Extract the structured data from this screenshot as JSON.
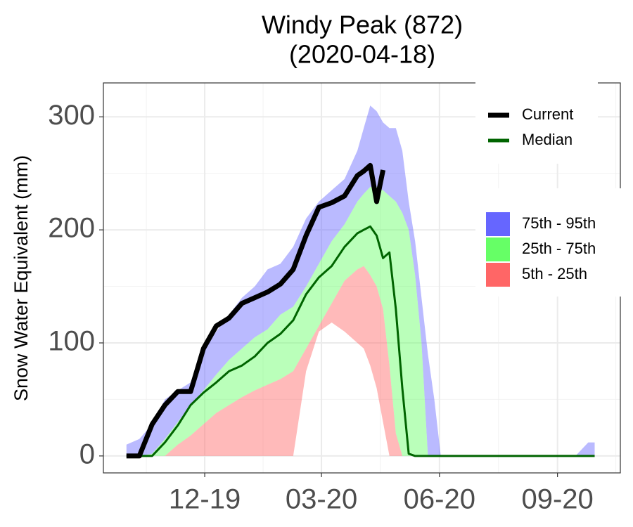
{
  "chart_data": {
    "type": "percentile_band",
    "title": "Windy Peak (872)",
    "subtitle": "(2020-04-18)",
    "y_label": "Snow Water Equivalent (mm)",
    "x": [
      "2019-10-01",
      "2019-10-11",
      "2019-10-21",
      "2019-10-31",
      "2019-11-10",
      "2019-11-20",
      "2019-11-30",
      "2019-12-10",
      "2019-12-20",
      "2019-12-30",
      "2020-01-09",
      "2020-01-19",
      "2020-01-29",
      "2020-02-08",
      "2020-02-18",
      "2020-02-28",
      "2020-03-09",
      "2020-03-19",
      "2020-03-29",
      "2020-04-03",
      "2020-04-08",
      "2020-04-13",
      "2020-04-18",
      "2020-04-23",
      "2020-04-28",
      "2020-05-03",
      "2020-05-08",
      "2020-05-13",
      "2020-05-18",
      "2020-05-23",
      "2020-05-28",
      "2020-06-02",
      "2020-06-07",
      "2020-06-17",
      "2020-06-27",
      "2020-07-07",
      "2020-07-17",
      "2020-07-27",
      "2020-08-06",
      "2020-08-16",
      "2020-08-26",
      "2020-09-05",
      "2020-09-15",
      "2020-09-25",
      "2020-09-30"
    ],
    "bands": [
      {
        "name": "75th - 95th",
        "color": "#6666ff",
        "low": [
          0,
          0,
          2,
          15,
          30,
          45,
          58,
          72,
          85,
          95,
          105,
          112,
          125,
          132,
          150,
          170,
          190,
          205,
          225,
          232,
          238,
          238,
          235,
          230,
          225,
          215,
          200,
          160,
          100,
          0,
          0,
          0,
          0,
          0,
          0,
          0,
          0,
          0,
          0,
          0,
          0,
          0,
          0,
          0,
          0
        ],
        "high": [
          10,
          15,
          28,
          50,
          58,
          65,
          95,
          110,
          125,
          140,
          150,
          165,
          170,
          185,
          210,
          225,
          235,
          245,
          270,
          290,
          310,
          305,
          295,
          290,
          290,
          270,
          225,
          190,
          140,
          90,
          50,
          0,
          0,
          0,
          0,
          0,
          0,
          0,
          0,
          0,
          0,
          0,
          0,
          12,
          12
        ]
      },
      {
        "name": "25th - 75th",
        "color": "#66ff66",
        "low": [
          0,
          0,
          0,
          0,
          10,
          18,
          28,
          38,
          45,
          52,
          58,
          63,
          68,
          75,
          95,
          115,
          135,
          155,
          165,
          168,
          160,
          150,
          130,
          80,
          20,
          0,
          0,
          0,
          0,
          0,
          0,
          0,
          0,
          0,
          0,
          0,
          0,
          0,
          0,
          0,
          0,
          0,
          0,
          0,
          0
        ],
        "high": [
          0,
          0,
          2,
          15,
          30,
          45,
          58,
          72,
          85,
          95,
          105,
          112,
          125,
          132,
          150,
          170,
          190,
          205,
          225,
          232,
          238,
          238,
          235,
          230,
          225,
          215,
          200,
          160,
          100,
          0,
          0,
          0,
          0,
          0,
          0,
          0,
          0,
          0,
          0,
          0,
          0,
          0,
          0,
          0,
          0
        ]
      },
      {
        "name": "5th - 25th",
        "color": "#ff6666",
        "low": [
          0,
          0,
          0,
          0,
          0,
          0,
          0,
          0,
          0,
          0,
          0,
          0,
          0,
          0,
          75,
          110,
          118,
          110,
          100,
          95,
          80,
          60,
          30,
          0,
          0,
          0,
          0,
          0,
          0,
          0,
          0,
          0,
          0,
          0,
          0,
          0,
          0,
          0,
          0,
          0,
          0,
          0,
          0,
          0,
          0
        ],
        "high": [
          0,
          0,
          0,
          0,
          10,
          18,
          28,
          38,
          45,
          52,
          58,
          63,
          68,
          75,
          95,
          115,
          135,
          155,
          165,
          168,
          160,
          150,
          130,
          80,
          20,
          0,
          0,
          0,
          0,
          0,
          0,
          0,
          0,
          0,
          0,
          0,
          0,
          0,
          0,
          0,
          0,
          0,
          0,
          0,
          0
        ]
      }
    ],
    "series": [
      {
        "name": "Current",
        "color": "#000000",
        "values": [
          0,
          0,
          28,
          45,
          57,
          57,
          95,
          115,
          122,
          135,
          140,
          145,
          152,
          165,
          195,
          220,
          224,
          230,
          248,
          252,
          257,
          225,
          253,
          null,
          null,
          null,
          null,
          null,
          null,
          null,
          null,
          null,
          null,
          null,
          null,
          null,
          null,
          null,
          null,
          null,
          null,
          null,
          null,
          null,
          null
        ]
      },
      {
        "name": "Median",
        "color": "#006400",
        "values": [
          0,
          0,
          0,
          12,
          27,
          45,
          56,
          65,
          75,
          80,
          88,
          100,
          108,
          120,
          143,
          158,
          168,
          185,
          197,
          200,
          203,
          195,
          175,
          180,
          130,
          60,
          2,
          0,
          0,
          0,
          0,
          0,
          0,
          0,
          0,
          0,
          0,
          0,
          0,
          0,
          0,
          0,
          0,
          0,
          0
        ]
      }
    ],
    "xlim": [
      "2019-09-13",
      "2020-10-20"
    ],
    "xticks": [
      {
        "value": "2019-12-01",
        "label": "12-19"
      },
      {
        "value": "2020-03-01",
        "label": "03-20"
      },
      {
        "value": "2020-06-01",
        "label": "06-20"
      },
      {
        "value": "2020-09-01",
        "label": "09-20"
      }
    ],
    "ylim": [
      -15,
      330
    ],
    "yticks": [
      0,
      100,
      200,
      300
    ],
    "grid": true,
    "legend": "right"
  }
}
